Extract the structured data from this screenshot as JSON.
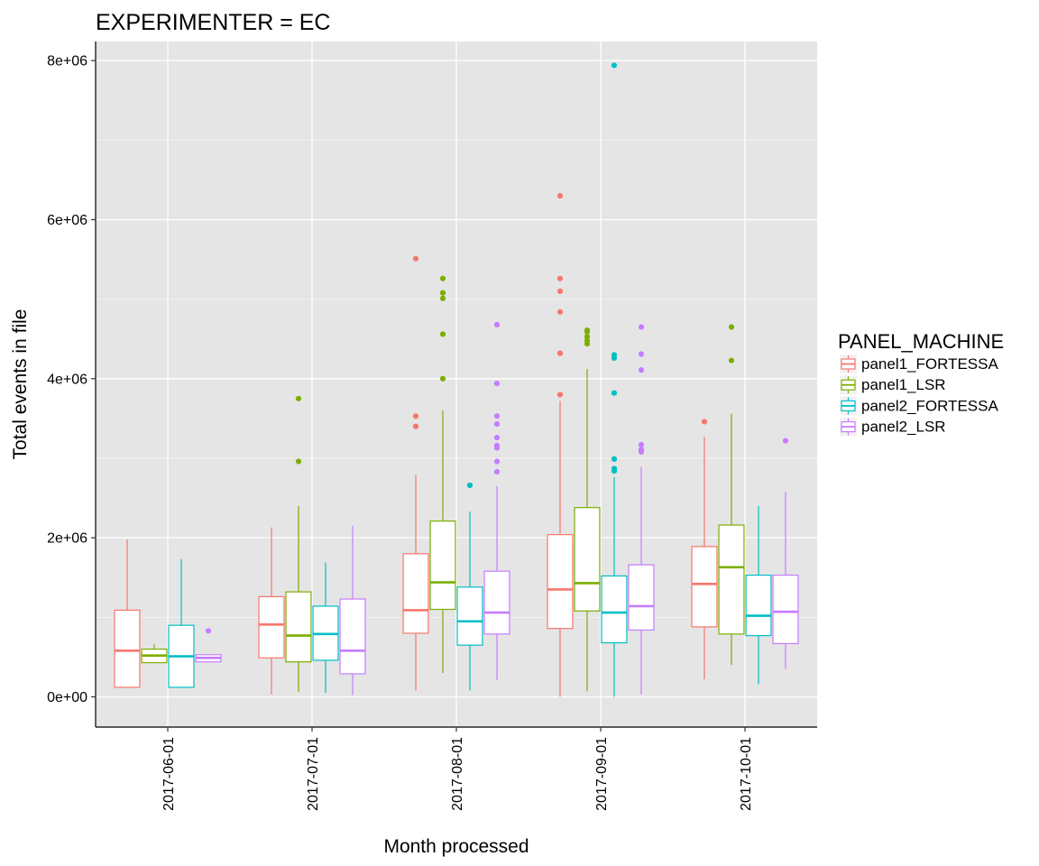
{
  "chart_data": {
    "type": "boxplot",
    "title": "EXPERIMENTER = EC",
    "xlabel": "Month processed",
    "ylabel": "Total events in file",
    "categories": [
      "2017-06-01",
      "2017-07-01",
      "2017-08-01",
      "2017-09-01",
      "2017-10-01"
    ],
    "ylim": [
      -380000,
      8240000
    ],
    "yticks": [
      0,
      2000000,
      4000000,
      6000000,
      8000000
    ],
    "ytick_labels": [
      "0e+00",
      "2e+06",
      "4e+06",
      "6e+06",
      "8e+06"
    ],
    "grid": true,
    "legend": {
      "title": "PANEL_MACHINE",
      "position": "right"
    },
    "series": [
      {
        "name": "panel1_FORTESSA",
        "color": "#F8766D",
        "boxes": [
          {
            "category": "2017-06-01",
            "min": 120000,
            "q1": 120000,
            "median": 580000,
            "q3": 1090000,
            "max": 1980000,
            "outliers": []
          },
          {
            "category": "2017-07-01",
            "min": 30000,
            "q1": 490000,
            "median": 910000,
            "q3": 1260000,
            "max": 2130000,
            "outliers": []
          },
          {
            "category": "2017-08-01",
            "min": 80000,
            "q1": 800000,
            "median": 1090000,
            "q3": 1800000,
            "max": 2790000,
            "outliers": [
              3400000,
              3530000,
              5510000
            ]
          },
          {
            "category": "2017-09-01",
            "min": 0,
            "q1": 860000,
            "median": 1350000,
            "q3": 2040000,
            "max": 3720000,
            "outliers": [
              3800000,
              4320000,
              4840000,
              5100000,
              5260000,
              6300000
            ]
          },
          {
            "category": "2017-10-01",
            "min": 220000,
            "q1": 880000,
            "median": 1420000,
            "q3": 1890000,
            "max": 3270000,
            "outliers": [
              3460000
            ]
          }
        ]
      },
      {
        "name": "panel1_LSR",
        "color": "#7CAE00",
        "boxes": [
          {
            "category": "2017-06-01",
            "min": 430000,
            "q1": 430000,
            "median": 520000,
            "q3": 600000,
            "max": 660000,
            "outliers": []
          },
          {
            "category": "2017-07-01",
            "min": 60000,
            "q1": 440000,
            "median": 770000,
            "q3": 1320000,
            "max": 2400000,
            "outliers": [
              2960000,
              3750000
            ]
          },
          {
            "category": "2017-08-01",
            "min": 300000,
            "q1": 1100000,
            "median": 1440000,
            "q3": 2210000,
            "max": 3600000,
            "outliers": [
              4000000,
              4560000,
              5010000,
              5080000,
              5260000
            ]
          },
          {
            "category": "2017-09-01",
            "min": 70000,
            "q1": 1080000,
            "median": 1430000,
            "q3": 2380000,
            "max": 4120000,
            "outliers": [
              4440000,
              4480000,
              4530000,
              4590000,
              4610000
            ]
          },
          {
            "category": "2017-10-01",
            "min": 400000,
            "q1": 790000,
            "median": 1630000,
            "q3": 2160000,
            "max": 3560000,
            "outliers": [
              4230000,
              4650000
            ]
          }
        ]
      },
      {
        "name": "panel2_FORTESSA",
        "color": "#00BFC4",
        "boxes": [
          {
            "category": "2017-06-01",
            "min": 120000,
            "q1": 120000,
            "median": 510000,
            "q3": 900000,
            "max": 1730000,
            "outliers": []
          },
          {
            "category": "2017-07-01",
            "min": 50000,
            "q1": 460000,
            "median": 790000,
            "q3": 1140000,
            "max": 1690000,
            "outliers": []
          },
          {
            "category": "2017-08-01",
            "min": 80000,
            "q1": 650000,
            "median": 950000,
            "q3": 1380000,
            "max": 2330000,
            "outliers": [
              2660000
            ]
          },
          {
            "category": "2017-09-01",
            "min": 0,
            "q1": 680000,
            "median": 1060000,
            "q3": 1520000,
            "max": 2760000,
            "outliers": [
              2840000,
              2870000,
              2990000,
              3820000,
              4260000,
              4300000,
              7940000
            ]
          },
          {
            "category": "2017-10-01",
            "min": 160000,
            "q1": 770000,
            "median": 1020000,
            "q3": 1530000,
            "max": 2400000,
            "outliers": []
          }
        ]
      },
      {
        "name": "panel2_LSR",
        "color": "#C77CFF",
        "boxes": [
          {
            "category": "2017-06-01",
            "min": 440000,
            "q1": 440000,
            "median": 490000,
            "q3": 530000,
            "max": 530000,
            "outliers": [
              830000
            ]
          },
          {
            "category": "2017-07-01",
            "min": 20000,
            "q1": 290000,
            "median": 580000,
            "q3": 1230000,
            "max": 2150000,
            "outliers": []
          },
          {
            "category": "2017-08-01",
            "min": 210000,
            "q1": 790000,
            "median": 1060000,
            "q3": 1580000,
            "max": 2650000,
            "outliers": [
              2830000,
              2960000,
              3130000,
              3160000,
              3260000,
              3430000,
              3530000,
              3940000,
              4680000
            ]
          },
          {
            "category": "2017-09-01",
            "min": 30000,
            "q1": 840000,
            "median": 1140000,
            "q3": 1660000,
            "max": 2890000,
            "outliers": [
              3080000,
              3110000,
              3170000,
              4110000,
              4310000,
              4650000
            ]
          },
          {
            "category": "2017-10-01",
            "min": 350000,
            "q1": 670000,
            "median": 1070000,
            "q3": 1530000,
            "max": 2580000,
            "outliers": [
              3220000
            ]
          }
        ]
      }
    ]
  }
}
